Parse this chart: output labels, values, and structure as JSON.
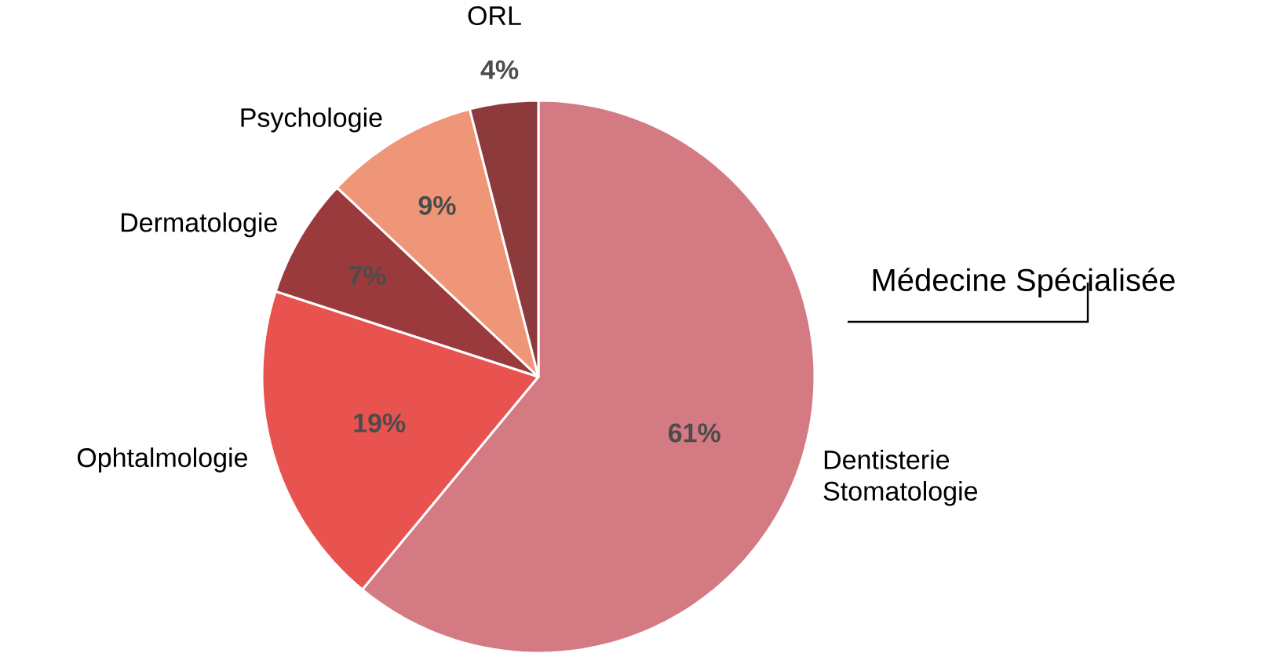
{
  "chart_data": {
    "type": "pie",
    "title": "Médecine Spécialisée",
    "categories": [
      "Dentisterie Stomatologie",
      "Ophtalmologie",
      "Dermatologie",
      "Psychologie",
      "ORL"
    ],
    "values": [
      61,
      19,
      7,
      9,
      4
    ],
    "value_labels": [
      "61%",
      "19%",
      "7%",
      "9%",
      "4%"
    ],
    "colors": [
      "#d47a82",
      "#e8534f",
      "#9b3a3c",
      "#ef9678",
      "#8c3a3b"
    ]
  }
}
